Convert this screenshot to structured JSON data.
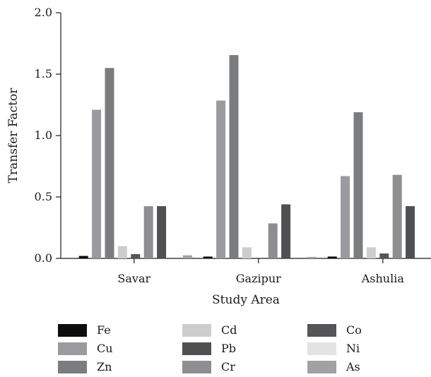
{
  "chart_data": {
    "type": "bar",
    "title": "",
    "xlabel": "Study Area",
    "ylabel": "Transfer Factor",
    "ylim": [
      0,
      2.0
    ],
    "yticks": [
      "0.0",
      "0.5",
      "1.0",
      "1.5",
      "2.0"
    ],
    "categories": [
      "Savar",
      "Gazipur",
      "Ashulia"
    ],
    "grid": false,
    "legend_position": "bottom",
    "series": [
      {
        "name": "Fe",
        "color": "#0d0d0d",
        "values": [
          0.02,
          0.015,
          0.015
        ]
      },
      {
        "name": "Cu",
        "color": "#9b9b9f",
        "values": [
          1.21,
          1.285,
          0.67
        ]
      },
      {
        "name": "Zn",
        "color": "#7b7c7e",
        "values": [
          1.55,
          1.655,
          1.19
        ]
      },
      {
        "name": "Cd",
        "color": "#cdcdcd",
        "values": [
          0.1,
          0.09,
          0.09
        ]
      },
      {
        "name": "Co",
        "color": "#545557",
        "values": [
          0.035,
          0.0,
          0.04
        ]
      },
      {
        "name": "Cr",
        "color": "#8e8e91",
        "values": [
          0.425,
          0.285,
          0.68
        ]
      },
      {
        "name": "Pb",
        "color": "#4f5052",
        "values": [
          0.425,
          0.44,
          0.425
        ]
      },
      {
        "name": "Ni",
        "color": "#e3e3e3",
        "values": [
          0.0,
          0.0,
          0.0
        ]
      },
      {
        "name": "As",
        "color": "#a1a1a4",
        "values": [
          0.025,
          0.012,
          0.012
        ]
      }
    ],
    "legend_order": [
      "Fe",
      "Cd",
      "Co",
      "Cu",
      "Pb",
      "Ni",
      "Zn",
      "Cr",
      "As"
    ]
  }
}
